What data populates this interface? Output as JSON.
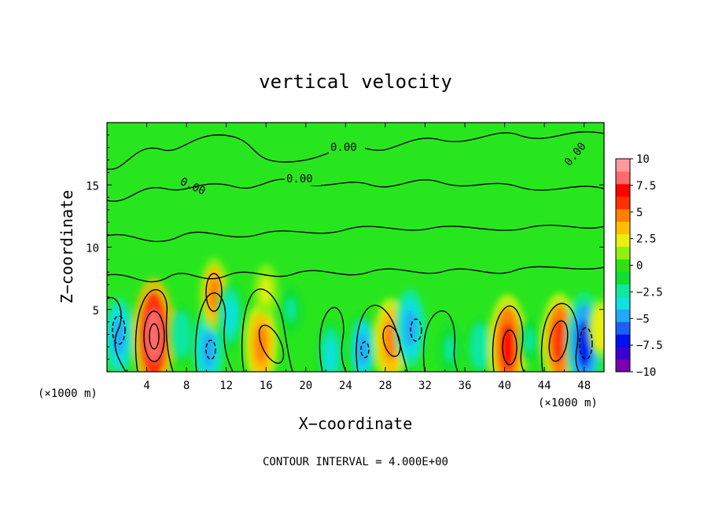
{
  "chart_data": {
    "type": "heatmap",
    "title": "vertical velocity",
    "xlabel": "X−coordinate",
    "ylabel": "Z−coordinate",
    "x_unit_left": "(×1000 m)",
    "x_unit_right": "(×1000 m)",
    "xlim": [
      0,
      50
    ],
    "ylim": [
      0,
      20
    ],
    "x_ticks": [
      4,
      8,
      12,
      16,
      20,
      24,
      28,
      32,
      36,
      40,
      44,
      48
    ],
    "y_ticks": [
      5,
      10,
      15
    ],
    "colorbar": {
      "ticks": [
        "10",
        "7.5",
        "5",
        "2.5",
        "0",
        "−2.5",
        "−5",
        "−7.5",
        "−10"
      ],
      "range": [
        -10,
        10
      ],
      "colors": [
        "#7a00b0",
        "#3a00d0",
        "#0010f0",
        "#1a60f8",
        "#22a8f8",
        "#10e0e0",
        "#10e8a0",
        "#10e030",
        "#30e010",
        "#90f010",
        "#e8f010",
        "#ffc000",
        "#ff8000",
        "#ff3000",
        "#ff0000",
        "#ff6a6a",
        "#ff9a9a"
      ]
    },
    "contour_labels": [
      "0.00",
      "0.00",
      "0.00",
      "0.00"
    ],
    "features": [
      {
        "x": 1.2,
        "z": 2.8,
        "w": -5
      },
      {
        "x": 4.7,
        "z": 2.9,
        "w": 8.5
      },
      {
        "x": 7.5,
        "z": 3.0,
        "w": -3
      },
      {
        "x": 10.2,
        "z": 1.8,
        "w": -5
      },
      {
        "x": 10.8,
        "z": 6.2,
        "w": 4.5
      },
      {
        "x": 12.4,
        "z": 4.5,
        "w": -4
      },
      {
        "x": 15.5,
        "z": 2.2,
        "w": 5.5
      },
      {
        "x": 16.0,
        "z": 6.5,
        "w": 2.5
      },
      {
        "x": 18.5,
        "z": 5.0,
        "w": -2
      },
      {
        "x": 22.5,
        "z": 1.3,
        "w": -4
      },
      {
        "x": 25.7,
        "z": 1.8,
        "w": -4.5
      },
      {
        "x": 28.5,
        "z": 2.5,
        "w": 5.5
      },
      {
        "x": 30.5,
        "z": 3.5,
        "w": -5
      },
      {
        "x": 34.5,
        "z": 1.8,
        "w": -2.5
      },
      {
        "x": 37.5,
        "z": 2.0,
        "w": -3
      },
      {
        "x": 40.3,
        "z": 2.0,
        "w": 7.5
      },
      {
        "x": 42.5,
        "z": 2.5,
        "w": -2
      },
      {
        "x": 45.5,
        "z": 2.5,
        "w": 6.5
      },
      {
        "x": 48.0,
        "z": 2.2,
        "w": -7.5
      },
      {
        "x": 49.7,
        "z": 3.5,
        "w": 3
      }
    ],
    "footer": "CONTOUR INTERVAL = 4.000E+00"
  }
}
